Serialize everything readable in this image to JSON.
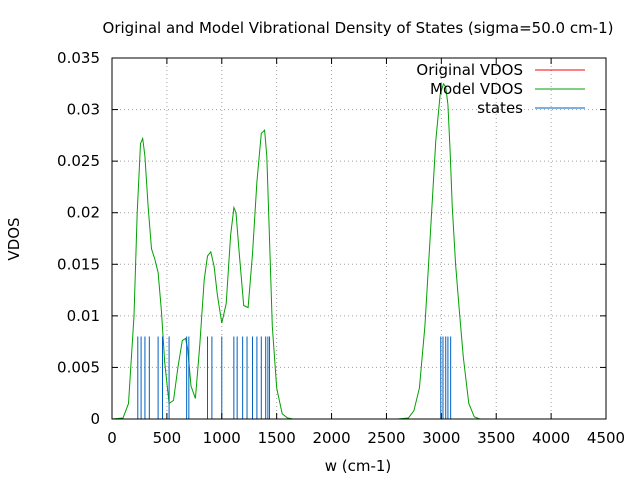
{
  "chart_data": {
    "type": "line",
    "title": "Original and Model Vibrational Density of States (sigma=50.0 cm-1)",
    "xlabel": "w (cm-1)",
    "ylabel": "VDOS",
    "xlim": [
      0,
      4500
    ],
    "ylim": [
      0,
      0.035
    ],
    "xticks": [
      0,
      500,
      1000,
      1500,
      2000,
      2500,
      3000,
      3500,
      4000,
      4500
    ],
    "xtick_labels": [
      "0",
      "500",
      "1000",
      "1500",
      "2000",
      "2500",
      "3000",
      "3500",
      "4000",
      "4500"
    ],
    "yticks": [
      0,
      0.005,
      0.01,
      0.015,
      0.02,
      0.025,
      0.03,
      0.035
    ],
    "ytick_labels": [
      "0",
      "0.005",
      "0.01",
      "0.015",
      "0.02",
      "0.025",
      "0.03",
      "0.035"
    ],
    "grid": true,
    "grid_style": "dotted",
    "legend_position": "top-right",
    "series": [
      {
        "name": "Original VDOS",
        "color": "#ff0000",
        "kind": "line",
        "x": [],
        "y": []
      },
      {
        "name": "Model VDOS",
        "color": "#00a000",
        "kind": "line",
        "x": [
          0,
          100,
          150,
          200,
          230,
          260,
          280,
          300,
          330,
          360,
          390,
          420,
          450,
          480,
          520,
          560,
          600,
          640,
          670,
          690,
          720,
          760,
          800,
          840,
          870,
          900,
          930,
          960,
          1000,
          1040,
          1080,
          1110,
          1130,
          1160,
          1200,
          1240,
          1280,
          1320,
          1360,
          1390,
          1410,
          1430,
          1460,
          1500,
          1550,
          1600,
          1650,
          1700,
          1800,
          2600,
          2700,
          2750,
          2800,
          2850,
          2900,
          2950,
          2990,
          3020,
          3040,
          3060,
          3080,
          3100,
          3130,
          3160,
          3200,
          3250,
          3300,
          3350,
          3400,
          4300
        ],
        "y": [
          0,
          0.0001,
          0.0015,
          0.01,
          0.02,
          0.0267,
          0.0272,
          0.0255,
          0.0205,
          0.0165,
          0.0155,
          0.0142,
          0.0105,
          0.0055,
          0.0015,
          0.0018,
          0.005,
          0.0076,
          0.0078,
          0.0068,
          0.0032,
          0.002,
          0.0072,
          0.0135,
          0.0158,
          0.0162,
          0.0148,
          0.012,
          0.0093,
          0.0112,
          0.0178,
          0.0205,
          0.02,
          0.016,
          0.011,
          0.0108,
          0.016,
          0.023,
          0.0277,
          0.028,
          0.0255,
          0.019,
          0.009,
          0.003,
          0.0005,
          0.0001,
          0,
          0,
          0,
          0,
          0.0001,
          0.0008,
          0.003,
          0.009,
          0.018,
          0.027,
          0.0315,
          0.0325,
          0.0322,
          0.0305,
          0.026,
          0.0205,
          0.015,
          0.011,
          0.006,
          0.0015,
          0.0002,
          0,
          0,
          0
        ]
      },
      {
        "name": "states",
        "color": "#0060c0",
        "kind": "impulse",
        "height": 0.008,
        "x": [
          235,
          265,
          300,
          340,
          420,
          460,
          520,
          680,
          700,
          870,
          910,
          1000,
          1110,
          1140,
          1190,
          1230,
          1280,
          1320,
          1360,
          1400,
          1420,
          1435,
          2995,
          3015,
          3040,
          3060,
          3085
        ]
      }
    ]
  }
}
